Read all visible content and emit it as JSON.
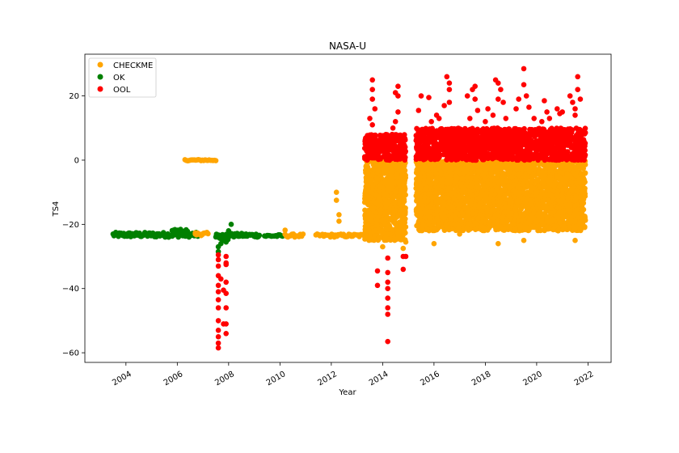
{
  "chart_data": {
    "type": "scatter",
    "title": "NASA-U",
    "xlabel": "Year",
    "ylabel": "TS4",
    "xlim": [
      2002.4,
      2022.9
    ],
    "ylim": [
      -63,
      33
    ],
    "xticks": [
      2004,
      2006,
      2008,
      2010,
      2012,
      2014,
      2016,
      2018,
      2020,
      2022
    ],
    "yticks": [
      -60,
      -40,
      -20,
      0,
      20
    ],
    "legend": "upper-left",
    "grid": false,
    "series": [
      {
        "name": "CHECKME",
        "color": "#ffa500"
      },
      {
        "name": "OK",
        "color": "#008000"
      },
      {
        "name": "OOL",
        "color": "#ff0000"
      }
    ],
    "segments": [
      {
        "series": "OK",
        "x": [
          2003.5,
          2006.8
        ],
        "y": [
          -24.0,
          -22.5
        ],
        "style": "band"
      },
      {
        "series": "OK",
        "x": [
          2005.8,
          2006.4
        ],
        "y": [
          -22.5,
          -21.5
        ],
        "style": "band"
      },
      {
        "series": "CHECKME",
        "x": [
          2006.7,
          2007.2
        ],
        "y": [
          -23.5,
          -22.5
        ],
        "style": "band"
      },
      {
        "series": "CHECKME",
        "x": [
          2006.3,
          2007.5
        ],
        "y": [
          0.2,
          -0.2
        ],
        "style": "band"
      },
      {
        "series": "OK",
        "x": [
          2007.5,
          2008.0
        ],
        "y": [
          -25.0,
          -23.0
        ],
        "style": "band"
      },
      {
        "series": "OK",
        "x": [
          2007.9,
          2009.2
        ],
        "y": [
          -24.0,
          -22.8
        ],
        "style": "band"
      },
      {
        "series": "OK",
        "x": [
          2009.4,
          2010.1
        ],
        "y": [
          -24.0,
          -23.2
        ],
        "style": "band"
      },
      {
        "series": "CHECKME",
        "x": [
          2010.2,
          2010.9
        ],
        "y": [
          -24.0,
          -23.0
        ],
        "style": "band"
      },
      {
        "series": "CHECKME",
        "x": [
          2011.4,
          2013.4
        ],
        "y": [
          -24.0,
          -23.0
        ],
        "style": "band"
      },
      {
        "series": "CHECKME",
        "x": [
          2013.3,
          2014.9
        ],
        "y": [
          -25.0,
          0.0
        ],
        "style": "dense"
      },
      {
        "series": "OOL",
        "x": [
          2013.3,
          2014.9
        ],
        "y": [
          0.0,
          8.0
        ],
        "style": "dense"
      },
      {
        "series": "CHECKME",
        "x": [
          2015.3,
          2021.9
        ],
        "y": [
          -22.0,
          0.0
        ],
        "style": "dense"
      },
      {
        "series": "OOL",
        "x": [
          2015.3,
          2021.9
        ],
        "y": [
          0.0,
          10.0
        ],
        "style": "dense"
      }
    ],
    "points": {
      "CHECKME": [
        [
          2006.7,
          -23.0
        ],
        [
          2012.2,
          -12.5
        ],
        [
          2012.2,
          -10.0
        ],
        [
          2012.3,
          -17.0
        ],
        [
          2012.3,
          -19.0
        ],
        [
          2010.2,
          -21.8
        ],
        [
          2014.0,
          -27.0
        ],
        [
          2014.3,
          -23.0
        ],
        [
          2014.8,
          -27.5
        ],
        [
          2014.9,
          -25.5
        ],
        [
          2016.0,
          -26.0
        ],
        [
          2018.5,
          -26.0
        ],
        [
          2017.0,
          -23.0
        ],
        [
          2019.5,
          -25.0
        ],
        [
          2021.5,
          -25.0
        ]
      ],
      "OK": [
        [
          2007.6,
          -28.5
        ],
        [
          2007.6,
          -27.0
        ],
        [
          2007.7,
          -26.0
        ],
        [
          2008.1,
          -20.0
        ],
        [
          2008.0,
          -22.0
        ],
        [
          2007.8,
          -23.5
        ],
        [
          2007.9,
          -25.5
        ]
      ],
      "OOL": [
        [
          2007.6,
          -58.5
        ],
        [
          2007.6,
          -57.0
        ],
        [
          2007.6,
          -55.0
        ],
        [
          2007.6,
          -53.0
        ],
        [
          2007.6,
          -50.0
        ],
        [
          2007.6,
          -46.0
        ],
        [
          2007.6,
          -43.5
        ],
        [
          2007.6,
          -41.0
        ],
        [
          2007.6,
          -39.0
        ],
        [
          2007.6,
          -36.0
        ],
        [
          2007.6,
          -33.0
        ],
        [
          2007.6,
          -31.0
        ],
        [
          2007.6,
          -29.5
        ],
        [
          2007.7,
          -37.0
        ],
        [
          2007.8,
          -51.0
        ],
        [
          2007.8,
          -40.5
        ],
        [
          2007.9,
          -32.5
        ],
        [
          2007.9,
          -54.0
        ],
        [
          2007.9,
          -51.0
        ],
        [
          2007.9,
          -46.0
        ],
        [
          2007.9,
          -41.5
        ],
        [
          2007.9,
          -38.0
        ],
        [
          2007.9,
          -32.0
        ],
        [
          2007.9,
          -30.0
        ],
        [
          2013.8,
          -39.0
        ],
        [
          2013.8,
          -34.5
        ],
        [
          2014.2,
          -56.5
        ],
        [
          2014.2,
          -48.0
        ],
        [
          2014.2,
          -46.0
        ],
        [
          2014.2,
          -43.0
        ],
        [
          2014.2,
          -40.0
        ],
        [
          2014.2,
          -38.0
        ],
        [
          2014.2,
          -35.0
        ],
        [
          2014.2,
          -30.5
        ],
        [
          2014.8,
          -34.0
        ],
        [
          2014.8,
          -30.0
        ],
        [
          2014.9,
          -30.0
        ],
        [
          2013.6,
          25.0
        ],
        [
          2013.6,
          22.0
        ],
        [
          2013.6,
          19.0
        ],
        [
          2013.7,
          16.0
        ],
        [
          2013.5,
          13.0
        ],
        [
          2013.6,
          11.0
        ],
        [
          2014.6,
          23.0
        ],
        [
          2014.6,
          20.0
        ],
        [
          2014.5,
          21.0
        ],
        [
          2014.6,
          15.0
        ],
        [
          2014.5,
          12.0
        ],
        [
          2014.4,
          10.0
        ],
        [
          2015.5,
          20.0
        ],
        [
          2015.4,
          15.5
        ],
        [
          2015.8,
          19.5
        ],
        [
          2015.9,
          12.0
        ],
        [
          2016.1,
          14.0
        ],
        [
          2016.5,
          26.0
        ],
        [
          2016.6,
          24.0
        ],
        [
          2016.6,
          22.0
        ],
        [
          2016.6,
          18.0
        ],
        [
          2016.4,
          17.0
        ],
        [
          2016.2,
          13.0
        ],
        [
          2017.3,
          20.0
        ],
        [
          2017.5,
          22.0
        ],
        [
          2017.6,
          23.0
        ],
        [
          2017.6,
          19.0
        ],
        [
          2017.7,
          15.5
        ],
        [
          2017.4,
          13.0
        ],
        [
          2018.1,
          16.0
        ],
        [
          2018.0,
          12.0
        ],
        [
          2018.4,
          25.0
        ],
        [
          2018.5,
          24.0
        ],
        [
          2018.6,
          22.0
        ],
        [
          2018.5,
          19.0
        ],
        [
          2018.7,
          18.0
        ],
        [
          2018.3,
          14.0
        ],
        [
          2018.8,
          13.0
        ],
        [
          2019.2,
          16.0
        ],
        [
          2019.3,
          19.0
        ],
        [
          2019.5,
          28.5
        ],
        [
          2019.5,
          23.5
        ],
        [
          2019.6,
          20.0
        ],
        [
          2019.7,
          16.5
        ],
        [
          2019.9,
          13.0
        ],
        [
          2020.3,
          18.5
        ],
        [
          2020.4,
          15.0
        ],
        [
          2020.2,
          12.0
        ],
        [
          2020.5,
          13.0
        ],
        [
          2020.8,
          16.0
        ],
        [
          2020.9,
          14.5
        ],
        [
          2021.0,
          15.0
        ],
        [
          2021.3,
          20.0
        ],
        [
          2021.4,
          18.0
        ],
        [
          2021.5,
          14.0
        ],
        [
          2021.6,
          26.0
        ],
        [
          2021.6,
          22.0
        ],
        [
          2021.7,
          19.0
        ],
        [
          2021.5,
          16.0
        ]
      ]
    }
  }
}
